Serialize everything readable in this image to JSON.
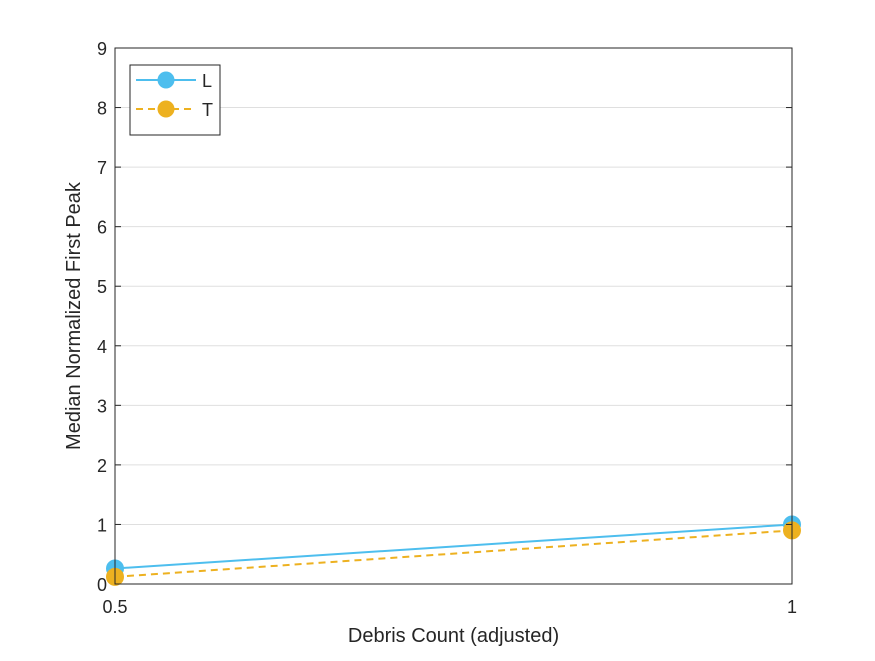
{
  "chart_data": {
    "type": "line",
    "title": "",
    "xlabel": "Debris Count (adjusted)",
    "ylabel": "Median Normalized First Peak",
    "xlim": [
      0.5,
      1
    ],
    "ylim": [
      0,
      9
    ],
    "x_ticks": [
      0.5,
      1
    ],
    "x_tick_labels": [
      "0.5",
      "1"
    ],
    "y_ticks": [
      0,
      1,
      2,
      3,
      4,
      5,
      6,
      7,
      8,
      9
    ],
    "y_tick_labels": [
      "0",
      "1",
      "2",
      "3",
      "4",
      "5",
      "6",
      "7",
      "8",
      "9"
    ],
    "grid": "horizontal",
    "legend_position": "top-left",
    "series": [
      {
        "name": "L",
        "x": [
          0.5,
          1
        ],
        "y": [
          0.26,
          1.0
        ],
        "color": "#4DBEEE",
        "line_style": "solid",
        "marker": "circle"
      },
      {
        "name": "T",
        "x": [
          0.5,
          1
        ],
        "y": [
          0.12,
          0.9
        ],
        "color": "#EDB120",
        "line_style": "dashed",
        "marker": "circle"
      }
    ]
  }
}
